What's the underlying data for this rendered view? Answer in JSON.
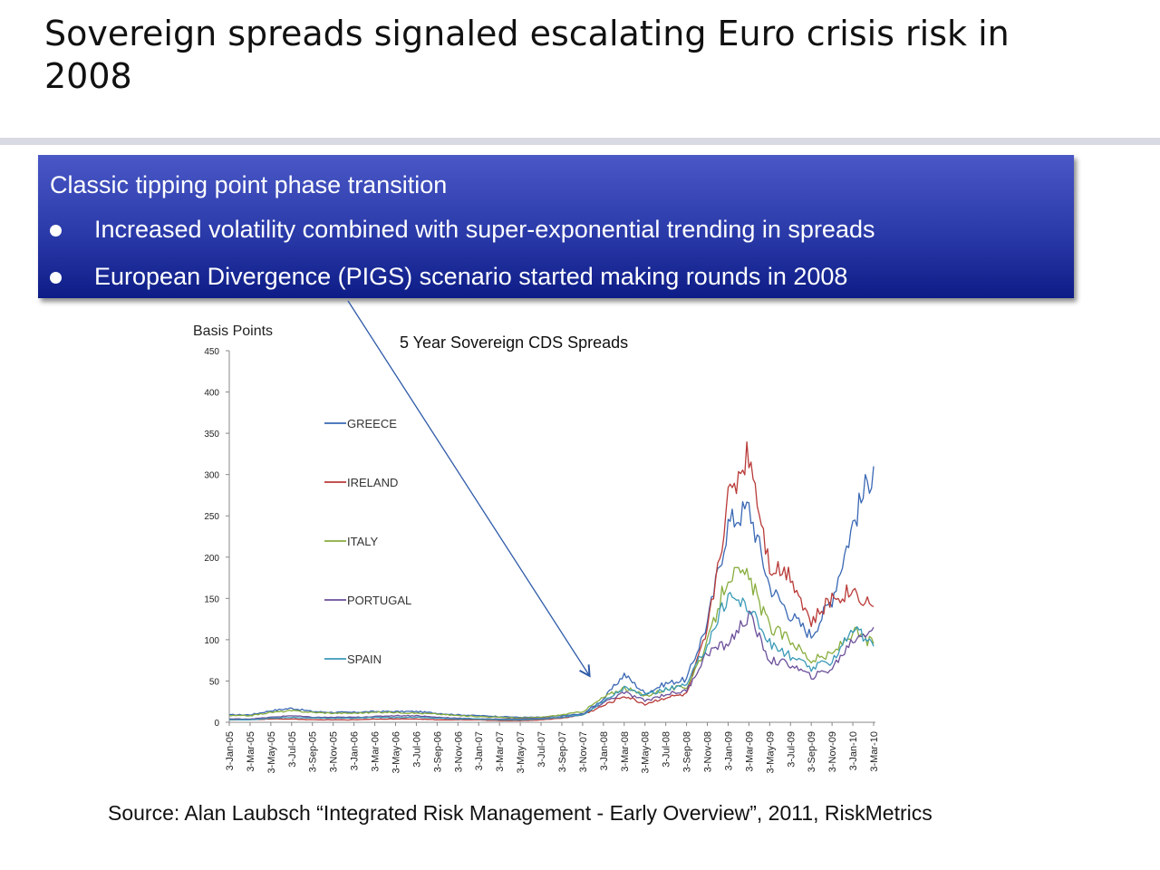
{
  "slide": {
    "title": "Sovereign spreads signaled escalating Euro crisis risk in 2008",
    "callout": {
      "heading": "Classic tipping point phase transition",
      "bullets": [
        "Increased volatility combined with super-exponential trending in spreads",
        "European Divergence (PIGS) scenario started making rounds in 2008"
      ]
    },
    "source": "Source: Alan Laubsch “Integrated Risk Management - Early Overview”, 2011, RiskMetrics"
  },
  "chart_data": {
    "type": "line",
    "title": "5 Year Sovereign CDS Spreads",
    "ylabel": "Basis Points",
    "xlabel": "",
    "ylim": [
      0,
      450
    ],
    "yticks": [
      0,
      50,
      100,
      150,
      200,
      250,
      300,
      350,
      400,
      450
    ],
    "legend_position": "left-inside",
    "grid": false,
    "x_categories": [
      "3-Jan-05",
      "3-Mar-05",
      "3-May-05",
      "3-Jul-05",
      "3-Sep-05",
      "3-Nov-05",
      "3-Jan-06",
      "3-Mar-06",
      "3-May-06",
      "3-Jul-06",
      "3-Sep-06",
      "3-Nov-06",
      "3-Jan-07",
      "3-Mar-07",
      "3-May-07",
      "3-Jul-07",
      "3-Sep-07",
      "3-Nov-07",
      "3-Jan-08",
      "3-Mar-08",
      "3-May-08",
      "3-Jul-08",
      "3-Sep-08",
      "3-Nov-08",
      "3-Jan-09",
      "3-Mar-09",
      "3-May-09",
      "3-Jul-09",
      "3-Sep-09",
      "3-Nov-09",
      "3-Jan-10",
      "3-Mar-10"
    ],
    "series": [
      {
        "name": "GREECE",
        "color": "#3a68b4",
        "values": [
          9,
          9,
          14,
          17,
          13,
          12,
          12,
          13,
          13,
          13,
          11,
          9,
          8,
          7,
          6,
          6,
          8,
          10,
          28,
          58,
          35,
          47,
          52,
          120,
          240,
          260,
          165,
          130,
          105,
          150,
          240,
          310
        ]
      },
      {
        "name": "IRELAND",
        "color": "#b83a38",
        "values": [
          3,
          3,
          4,
          4,
          3,
          3,
          3,
          4,
          4,
          4,
          3,
          3,
          3,
          2,
          2,
          3,
          5,
          9,
          20,
          32,
          22,
          30,
          34,
          110,
          270,
          330,
          190,
          180,
          120,
          150,
          160,
          140
        ]
      },
      {
        "name": "ITALY",
        "color": "#88ad3e",
        "values": [
          8,
          8,
          12,
          14,
          12,
          11,
          11,
          12,
          12,
          11,
          10,
          8,
          7,
          6,
          5,
          6,
          9,
          13,
          30,
          42,
          32,
          40,
          43,
          95,
          180,
          175,
          115,
          100,
          75,
          82,
          110,
          95
        ]
      },
      {
        "name": "PORTUGAL",
        "color": "#6b4f9a",
        "values": [
          4,
          4,
          6,
          8,
          6,
          6,
          6,
          7,
          8,
          8,
          6,
          5,
          4,
          4,
          4,
          5,
          6,
          9,
          24,
          36,
          26,
          34,
          38,
          85,
          95,
          130,
          75,
          70,
          55,
          65,
          100,
          115
        ]
      },
      {
        "name": "SPAIN",
        "color": "#3b9ab8",
        "values": [
          3,
          3,
          5,
          6,
          5,
          5,
          5,
          6,
          6,
          6,
          5,
          4,
          4,
          3,
          3,
          4,
          6,
          9,
          25,
          42,
          32,
          40,
          45,
          95,
          155,
          140,
          95,
          80,
          65,
          75,
          115,
          92
        ]
      }
    ],
    "annotation_arrow": "from callout box to Jan-08 (onset of divergence)"
  }
}
